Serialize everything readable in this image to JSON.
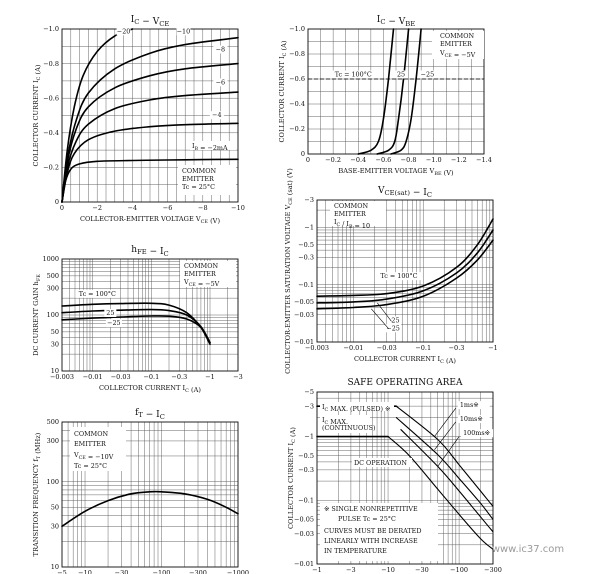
{
  "chart_data": [
    {
      "id": "ic_vce",
      "type": "line",
      "title": "I_C − V_CE",
      "xlabel": "COLLECTOR-EMITTER VOLTAGE   V_CE   (V)",
      "ylabel": "COLLECTOR CURRENT   I_C   (A)",
      "x_ticks": [
        "0",
        "−2",
        "−4",
        "−6",
        "−8",
        "−10"
      ],
      "y_ticks": [
        "0",
        "−0.2",
        "−0.4",
        "−0.6",
        "−0.8",
        "−1.0"
      ],
      "xlim": [
        0,
        -10
      ],
      "ylim": [
        0,
        -1.0
      ],
      "notes": [
        "COMMON",
        "EMITTER",
        "Tc = 25°C"
      ],
      "ib_label": "I_B = −2mA",
      "series": [
        {
          "name": "−2",
          "x": [
            0,
            -0.2,
            -0.5,
            -1,
            -2,
            -4,
            -6,
            -8,
            -10
          ],
          "y": [
            0,
            -0.12,
            -0.19,
            -0.22,
            -0.235,
            -0.24,
            -0.243,
            -0.245,
            -0.247
          ]
        },
        {
          "name": "−4",
          "x": [
            0,
            -0.3,
            -0.7,
            -1.5,
            -3,
            -5,
            -7,
            -10
          ],
          "y": [
            0,
            -0.17,
            -0.28,
            -0.36,
            -0.41,
            -0.435,
            -0.447,
            -0.455
          ]
        },
        {
          "name": "−6",
          "x": [
            0,
            -0.3,
            -0.8,
            -1.5,
            -3,
            -5,
            -7,
            -10
          ],
          "y": [
            0,
            -0.2,
            -0.35,
            -0.45,
            -0.54,
            -0.59,
            -0.615,
            -0.635
          ]
        },
        {
          "name": "−8",
          "x": [
            0,
            -0.3,
            -0.8,
            -1.5,
            -3,
            -5,
            -7,
            -10
          ],
          "y": [
            0,
            -0.23,
            -0.42,
            -0.55,
            -0.66,
            -0.73,
            -0.77,
            -0.8
          ]
        },
        {
          "name": "−10",
          "x": [
            0,
            -0.3,
            -0.8,
            -1.5,
            -3,
            -5,
            -7,
            -10
          ],
          "y": [
            0,
            -0.25,
            -0.47,
            -0.63,
            -0.77,
            -0.86,
            -0.91,
            -0.95
          ]
        },
        {
          "name": "−20",
          "x": [
            0,
            -0.3,
            -0.7,
            -1.2,
            -2,
            -3,
            -4
          ],
          "y": [
            0,
            -0.3,
            -0.55,
            -0.73,
            -0.87,
            -0.96,
            -1.0
          ]
        }
      ],
      "curve_labels": [
        {
          "text": "−20",
          "x": -3.5,
          "y": -0.975
        },
        {
          "text": "−10",
          "x": -6.9,
          "y": -0.975
        },
        {
          "text": "−8",
          "x": -9.0,
          "y": -0.87
        },
        {
          "text": "−6",
          "x": -9.0,
          "y": -0.68
        },
        {
          "text": "−4",
          "x": -8.8,
          "y": -0.49
        }
      ]
    },
    {
      "id": "ic_vbe",
      "type": "line",
      "title": "I_C − V_BE",
      "xlabel": "BASE-EMITTER VOLTAGE   V_BE   (V)",
      "ylabel": "COLLECTOR CURRENT   I_C   (A)",
      "x_ticks": [
        "0",
        "−0.2",
        "−0.4",
        "−0.6",
        "−0.8",
        "−1.0",
        "−1.2",
        "−1.4"
      ],
      "y_ticks": [
        "0",
        "−0.2",
        "−0.4",
        "−0.6",
        "−0.8",
        "−1.0"
      ],
      "xlim": [
        0,
        -1.4
      ],
      "ylim": [
        0,
        -1.0
      ],
      "notes": [
        "COMMON",
        "EMITTER",
        "V_CE = −5V"
      ],
      "series": [
        {
          "name": "Tc = 100°C",
          "x": [
            -0.4,
            -0.5,
            -0.56,
            -0.6,
            -0.64,
            -0.68
          ],
          "y": [
            0,
            -0.03,
            -0.1,
            -0.28,
            -0.6,
            -1.0
          ]
        },
        {
          "name": "25",
          "x": [
            -0.55,
            -0.64,
            -0.69,
            -0.72,
            -0.76,
            -0.8
          ],
          "y": [
            0,
            -0.03,
            -0.1,
            -0.28,
            -0.6,
            -1.0
          ]
        },
        {
          "name": "−25",
          "x": [
            -0.66,
            -0.74,
            -0.78,
            -0.82,
            -0.86,
            -0.9
          ],
          "y": [
            0,
            -0.03,
            -0.1,
            -0.28,
            -0.6,
            -1.0
          ]
        }
      ],
      "curve_labels": [
        {
          "text": "Tc = 100°C",
          "x": -0.36,
          "y": -0.62
        },
        {
          "text": "25",
          "x": -0.74,
          "y": -0.62
        },
        {
          "text": "−25",
          "x": -0.95,
          "y": -0.62
        }
      ]
    },
    {
      "id": "hfe_ic",
      "type": "line",
      "title": "h_FE − I_C",
      "xlabel": "COLLECTOR CURRENT   I_C   (A)",
      "ylabel": "DC CURRENT GAIN   h_FE",
      "x_ticks": [
        "−0.003",
        "−0.01",
        "−0.03",
        "−0.1",
        "−0.3",
        "−1",
        "−3"
      ],
      "y_ticks": [
        "10",
        "30",
        "50",
        "100",
        "300",
        "500",
        "1000"
      ],
      "xlim": [
        0.003,
        3
      ],
      "ylim": [
        10,
        1000
      ],
      "xscale": "log",
      "yscale": "log",
      "notes": [
        "COMMON",
        "EMITTER",
        "V_CE = −5V"
      ],
      "series": [
        {
          "name": "Tc = 100°C",
          "x": [
            0.003,
            0.01,
            0.03,
            0.1,
            0.2,
            0.4,
            0.7,
            1.0
          ],
          "y": [
            145,
            155,
            160,
            162,
            150,
            110,
            60,
            30
          ]
        },
        {
          "name": "25",
          "x": [
            0.003,
            0.01,
            0.03,
            0.1,
            0.2,
            0.4,
            0.7,
            1.0
          ],
          "y": [
            110,
            118,
            122,
            125,
            120,
            100,
            62,
            32
          ]
        },
        {
          "name": "−25",
          "x": [
            0.003,
            0.01,
            0.03,
            0.1,
            0.2,
            0.4,
            0.7,
            1.0
          ],
          "y": [
            82,
            88,
            92,
            96,
            95,
            85,
            60,
            32
          ]
        }
      ],
      "curve_labels": [
        {
          "text": "Tc = 100°C",
          "x": 0.012,
          "y": 220
        },
        {
          "text": "25",
          "x": 0.02,
          "y": 100
        },
        {
          "text": "−25",
          "x": 0.023,
          "y": 66
        }
      ]
    },
    {
      "id": "vcesat_ic",
      "type": "line",
      "title": "V_CE(sat) − I_C",
      "xlabel": "COLLECTOR CURRENT   I_C   (A)",
      "ylabel": "COLLECTOR-EMITTER SATURATION VOLTAGE   V_CE (sat)   (V)",
      "x_ticks": [
        "−0.003",
        "−0.01",
        "−0.03",
        "−0.1",
        "−0.3",
        "−1"
      ],
      "y_ticks": [
        "−0.01",
        "−0.03",
        "−0.05",
        "−0.1",
        "−0.3",
        "−0.5",
        "−1",
        "−3"
      ],
      "xlim": [
        0.003,
        1
      ],
      "ylim": [
        0.01,
        3
      ],
      "xscale": "log",
      "yscale": "log",
      "notes": [
        "COMMON",
        "EMITTER",
        "I_C / I_B = 10"
      ],
      "series": [
        {
          "name": "Tc = 100°C",
          "x": [
            0.003,
            0.01,
            0.03,
            0.1,
            0.3,
            0.6,
            1.0
          ],
          "y": [
            0.063,
            0.065,
            0.07,
            0.095,
            0.2,
            0.5,
            1.4
          ]
        },
        {
          "name": "25",
          "x": [
            0.003,
            0.01,
            0.03,
            0.1,
            0.3,
            0.6,
            1.0
          ],
          "y": [
            0.048,
            0.05,
            0.056,
            0.078,
            0.16,
            0.36,
            0.9
          ]
        },
        {
          "name": "−25",
          "x": [
            0.003,
            0.01,
            0.03,
            0.1,
            0.3,
            0.6,
            1.0
          ],
          "y": [
            0.038,
            0.04,
            0.045,
            0.063,
            0.13,
            0.27,
            0.6
          ]
        }
      ],
      "curve_labels": [
        {
          "text": "Tc = 100°C",
          "x": 0.045,
          "y": 0.13
        },
        {
          "text": "25",
          "x": 0.04,
          "y": 0.022
        },
        {
          "text": "−25",
          "x": 0.037,
          "y": 0.016
        }
      ]
    },
    {
      "id": "ft_ic",
      "type": "line",
      "title": "f_T − I_C",
      "xlabel": "",
      "ylabel": "TRANSITION FREQUENCY   f_T   (MHz)",
      "x_ticks": [
        "−5",
        "−10",
        "−30",
        "−100",
        "−300",
        "−1000"
      ],
      "y_ticks": [
        "10",
        "30",
        "50",
        "100",
        "300",
        "500"
      ],
      "xlim": [
        5,
        1000
      ],
      "ylim": [
        10,
        500
      ],
      "xscale": "log",
      "yscale": "log",
      "notes": [
        "COMMON",
        "EMITTER",
        "V_CE = −10V",
        "Tc = 25°C"
      ],
      "series": [
        {
          "name": "fT",
          "x": [
            5,
            10,
            20,
            40,
            70,
            100,
            200,
            400,
            700,
            1000
          ],
          "y": [
            30,
            45,
            60,
            72,
            76,
            76,
            72,
            62,
            50,
            42
          ]
        }
      ]
    },
    {
      "id": "soa",
      "type": "line",
      "title": "SAFE OPERATING AREA",
      "xlabel": "",
      "ylabel": "COLLECTOR CURRENT   I_C   (A)",
      "x_ticks": [
        "−1",
        "−3",
        "−10",
        "−30",
        "−100",
        "−300"
      ],
      "y_ticks": [
        "−0.01",
        "−0.03",
        "−0.05",
        "−0.1",
        "−0.3",
        "−0.5",
        "−1",
        "−3",
        "−5"
      ],
      "xlim": [
        1,
        300
      ],
      "ylim": [
        0.01,
        5
      ],
      "xscale": "log",
      "yscale": "log",
      "ic_max_pulsed": "I_C MAX. (PULSED) ※",
      "ic_max_cont_1": "I_C MAX.",
      "ic_max_cont_2": "(CONTINUOUS)",
      "dc_label": "DC OPERATION",
      "notes": [
        "※  SINGLE NONREPETITIVE",
        "PULSE  Tc = 25°C",
        "CURVES MUST BE DERATED",
        "LINEARLY WITH INCREASE",
        "IN TEMPERATURE"
      ],
      "series": [
        {
          "name": "1ms※",
          "x": [
            13,
            50,
            100,
            200,
            300
          ],
          "y": [
            3,
            0.9,
            0.36,
            0.14,
            0.08
          ]
        },
        {
          "name": "10ms※",
          "x": [
            13,
            50,
            100,
            200,
            300
          ],
          "y": [
            2.0,
            0.52,
            0.22,
            0.09,
            0.05
          ]
        },
        {
          "name": "100ms※",
          "x": [
            15,
            50,
            100,
            200,
            300
          ],
          "y": [
            1.3,
            0.34,
            0.14,
            0.055,
            0.032
          ]
        },
        {
          "name": "DC",
          "x": [
            10,
            20,
            50,
            100,
            200,
            300
          ],
          "y": [
            1.0,
            0.5,
            0.15,
            0.06,
            0.025,
            0.017
          ]
        }
      ],
      "ic_pulsed_value": 3,
      "ic_cont_value": 1,
      "curve_labels": [
        {
          "text": "1ms※",
          "x": 90,
          "y": 2.9
        },
        {
          "text": "10ms※",
          "x": 90,
          "y": 1.75
        },
        {
          "text": "100ms※",
          "x": 100,
          "y": 1.05
        }
      ]
    }
  ],
  "watermark": "www.ic37.com"
}
